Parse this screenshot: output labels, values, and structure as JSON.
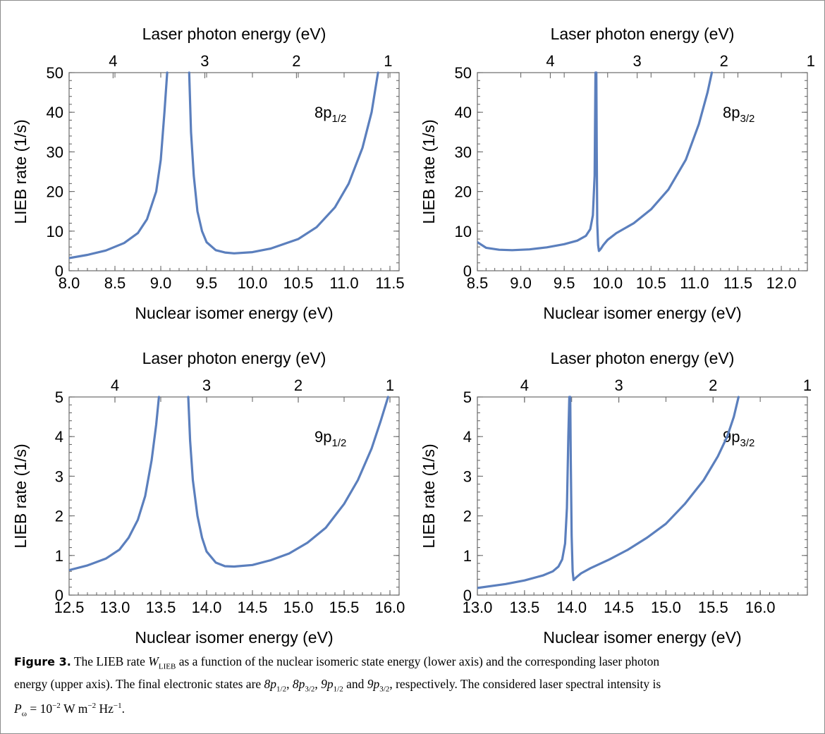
{
  "chart_data": [
    {
      "type": "line",
      "panel_label": {
        "main": "8p",
        "sub": "1/2"
      },
      "top_axis_label": "Laser photon energy (eV)",
      "xlabel": "Nuclear isomer energy (eV)",
      "ylabel": "LIEB rate (1/s)",
      "xlim": [
        8.0,
        11.6
      ],
      "ylim": [
        0,
        50
      ],
      "xticks": [
        8.0,
        8.5,
        9.0,
        9.5,
        10.0,
        10.5,
        11.0,
        11.5
      ],
      "xtick_labels": [
        "8.0",
        "8.5",
        "9.0",
        "9.5",
        "10.0",
        "10.5",
        "11.0",
        "11.5"
      ],
      "yticks": [
        0,
        10,
        20,
        30,
        40,
        50
      ],
      "ytick_labels": [
        "0",
        "10",
        "20",
        "30",
        "40",
        "50"
      ],
      "top_ticks": [
        4,
        3,
        2,
        1
      ],
      "top_tick_labels": [
        "4",
        "3",
        "2",
        "1"
      ],
      "top_ticks_at_x": [
        8.48,
        9.48,
        10.48,
        11.48
      ],
      "series": [
        {
          "x": [
            8.0,
            8.2,
            8.4,
            8.6,
            8.75,
            8.85,
            8.95,
            9.0,
            9.04,
            9.07
          ],
          "y": [
            3.2,
            4.0,
            5.1,
            7.0,
            9.5,
            13,
            20,
            28,
            40,
            50
          ]
        },
        {
          "x": [
            9.31,
            9.33,
            9.36,
            9.4,
            9.45,
            9.5,
            9.6,
            9.7,
            9.8,
            10.0,
            10.2,
            10.5,
            10.7,
            10.9,
            11.05,
            11.2,
            11.3,
            11.37
          ],
          "y": [
            50,
            35,
            24,
            15,
            10,
            7.2,
            5.2,
            4.6,
            4.4,
            4.7,
            5.6,
            8.0,
            11,
            16,
            22,
            31,
            40,
            50
          ]
        }
      ]
    },
    {
      "type": "line",
      "panel_label": {
        "main": "8p",
        "sub": "3/2"
      },
      "top_axis_label": "Laser photon energy (eV)",
      "xlabel": "Nuclear isomer energy (eV)",
      "ylabel": "LIEB rate (1/s)",
      "xlim": [
        8.5,
        12.3
      ],
      "ylim": [
        0,
        50
      ],
      "xticks": [
        8.5,
        9.0,
        9.5,
        10.0,
        10.5,
        11.0,
        11.5,
        12.0
      ],
      "xtick_labels": [
        "8.5",
        "9.0",
        "9.5",
        "10.0",
        "10.5",
        "11.0",
        "11.5",
        "12.0"
      ],
      "yticks": [
        0,
        10,
        20,
        30,
        40,
        50
      ],
      "ytick_labels": [
        "0",
        "10",
        "20",
        "30",
        "40",
        "50"
      ],
      "top_ticks": [
        4,
        3,
        2,
        1
      ],
      "top_tick_labels": [
        "4",
        "3",
        "2",
        "1"
      ],
      "top_ticks_at_x": [
        9.34,
        10.34,
        11.34,
        12.34
      ],
      "series": [
        {
          "x": [
            8.5,
            8.6,
            8.75,
            8.9,
            9.1,
            9.3,
            9.5,
            9.65,
            9.75,
            9.8,
            9.83,
            9.85,
            9.86,
            9.87,
            9.875,
            9.88,
            9.89,
            9.9,
            9.92,
            9.95,
            10.0,
            10.1,
            10.3,
            10.5,
            10.7,
            10.9,
            11.05,
            11.15,
            11.2
          ],
          "y": [
            7.2,
            5.8,
            5.3,
            5.2,
            5.4,
            5.9,
            6.7,
            7.6,
            8.8,
            10.5,
            14,
            24,
            50,
            50,
            30,
            12,
            6.5,
            5.0,
            5.5,
            6.5,
            7.8,
            9.5,
            12,
            15.5,
            20.5,
            28,
            37,
            45,
            50
          ]
        }
      ]
    },
    {
      "type": "line",
      "panel_label": {
        "main": "9p",
        "sub": "1/2"
      },
      "top_axis_label": "Laser photon energy (eV)",
      "xlabel": "Nuclear isomer energy (eV)",
      "ylabel": "LIEB rate (1/s)",
      "xlim": [
        12.5,
        16.1
      ],
      "ylim": [
        0,
        5
      ],
      "xticks": [
        12.5,
        13.0,
        13.5,
        14.0,
        14.5,
        15.0,
        15.5,
        16.0
      ],
      "xtick_labels": [
        "12.5",
        "13.0",
        "13.5",
        "14.0",
        "14.5",
        "15.0",
        "15.5",
        "16.0"
      ],
      "yticks": [
        0,
        1,
        2,
        3,
        4,
        5
      ],
      "ytick_labels": [
        "0",
        "1",
        "2",
        "3",
        "4",
        "5"
      ],
      "top_ticks": [
        4,
        3,
        2,
        1
      ],
      "top_tick_labels": [
        "4",
        "3",
        "2",
        "1"
      ],
      "top_ticks_at_x": [
        13.0,
        14.0,
        15.0,
        16.0
      ],
      "series": [
        {
          "x": [
            12.5,
            12.7,
            12.9,
            13.05,
            13.15,
            13.25,
            13.33,
            13.4,
            13.45,
            13.48
          ],
          "y": [
            0.63,
            0.75,
            0.92,
            1.15,
            1.45,
            1.9,
            2.5,
            3.4,
            4.3,
            5.0
          ]
        },
        {
          "x": [
            13.8,
            13.82,
            13.85,
            13.9,
            13.95,
            14.0,
            14.1,
            14.2,
            14.3,
            14.5,
            14.7,
            14.9,
            15.1,
            15.3,
            15.5,
            15.65,
            15.8,
            15.9,
            15.98
          ],
          "y": [
            5.0,
            3.9,
            2.9,
            2.0,
            1.45,
            1.1,
            0.82,
            0.73,
            0.72,
            0.76,
            0.88,
            1.05,
            1.32,
            1.7,
            2.3,
            2.9,
            3.7,
            4.4,
            5.0
          ]
        }
      ]
    },
    {
      "type": "line",
      "panel_label": {
        "main": "9p",
        "sub": "3/2"
      },
      "top_axis_label": "Laser photon energy (eV)",
      "xlabel": "Nuclear isomer energy (eV)",
      "ylabel": "LIEB rate (1/s)",
      "xlim": [
        13.0,
        16.5
      ],
      "ylim": [
        0,
        5
      ],
      "xticks": [
        13.0,
        13.5,
        14.0,
        14.5,
        15.0,
        15.5,
        16.0
      ],
      "xtick_labels": [
        "13.0",
        "13.5",
        "14.0",
        "14.5",
        "15.0",
        "15.5",
        "16.0"
      ],
      "yticks": [
        0,
        1,
        2,
        3,
        4,
        5
      ],
      "ytick_labels": [
        "0",
        "1",
        "2",
        "3",
        "4",
        "5"
      ],
      "top_ticks": [
        4,
        3,
        2,
        1
      ],
      "top_tick_labels": [
        "4",
        "3",
        "2",
        "1"
      ],
      "top_ticks_at_x": [
        13.5,
        14.5,
        15.5,
        16.5
      ],
      "series": [
        {
          "x": [
            13.0,
            13.3,
            13.5,
            13.7,
            13.8,
            13.86,
            13.9,
            13.93,
            13.95,
            13.965,
            13.975,
            13.985,
            13.99,
            14.0,
            14.01,
            14.02,
            14.05,
            14.1,
            14.2,
            14.4,
            14.6,
            14.8,
            15.0,
            15.2,
            15.4,
            15.55,
            15.65,
            15.72,
            15.77
          ],
          "y": [
            0.18,
            0.28,
            0.37,
            0.5,
            0.6,
            0.72,
            0.9,
            1.3,
            2.2,
            4.0,
            5.0,
            5.0,
            3.5,
            1.5,
            0.6,
            0.38,
            0.45,
            0.55,
            0.68,
            0.9,
            1.15,
            1.45,
            1.8,
            2.3,
            2.9,
            3.5,
            4.0,
            4.5,
            5.0
          ]
        }
      ]
    }
  ],
  "caption": {
    "figure_label": "Figure 3.",
    "line1_a": "The LIEB rate ",
    "w_symbol": "W",
    "w_sub": "LIEB",
    "line1_b": " as a function of the nuclear isomeric state energy (lower axis) and the corresponding laser photon",
    "line2_a": "energy (upper axis). The final electronic states are ",
    "s1": "8p",
    "s1_sub": "1/2",
    "sep1": ", ",
    "s2": "8p",
    "s2_sub": "3/2",
    "sep2": ", ",
    "s3": "9p",
    "s3_sub": "1/2",
    "and": " and ",
    "s4": "9p",
    "s4_sub": "3/2",
    "line2_b": ", respectively. The considered laser spectral intensity is",
    "p_symbol": "P",
    "p_sub": "ω",
    "p_value": " = 10",
    "p_exp1": "−2",
    "p_unit1": " W m",
    "p_exp2": "−2",
    "p_unit2": " Hz",
    "p_exp3": "−1",
    "p_end": "."
  }
}
